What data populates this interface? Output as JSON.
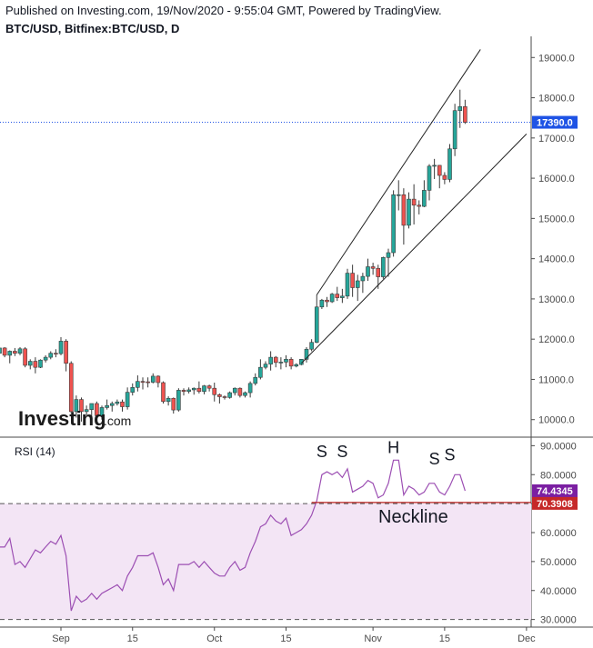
{
  "header": {
    "published": "Published on Investing.com, 19/Nov/2020 - 9:55:04 GMT, Powered by TradingView.",
    "symbol": "BTC/USD, Bitfinex:BTC/USD, D"
  },
  "logo": {
    "brand": "Investing",
    "suffix": ".com"
  },
  "colors": {
    "up": "#26a69a",
    "down": "#ef5350",
    "rsi_line": "#9c4fb3",
    "rsi_band": "#f3e5f5",
    "price_tag": "#1e53e5",
    "rsi_tag": "#7b1fa2",
    "level_tag": "#c62828",
    "neckline": "#b71c1c"
  },
  "chart_data": [
    {
      "type": "candlestick",
      "title": "BTC/USD, Bitfinex:BTC/USD, D",
      "ylim": [
        9700,
        19300
      ],
      "yticks": [
        "19000.0",
        "18000.0",
        "17000.0",
        "16000.0",
        "15000.0",
        "14000.0",
        "13000.0",
        "12000.0",
        "11000.0",
        "10000.0"
      ],
      "last_price_label": "17390.0",
      "last_price": 17390,
      "xlabels": [
        {
          "text": "Sep",
          "date": "2020-09-01"
        },
        {
          "text": "15",
          "date": "2020-09-15"
        },
        {
          "text": "Oct",
          "date": "2020-10-01"
        },
        {
          "text": "15",
          "date": "2020-10-15"
        },
        {
          "text": "Nov",
          "date": "2020-11-01"
        },
        {
          "text": "15",
          "date": "2020-11-15"
        },
        {
          "text": "Dec",
          "date": "2020-12-01"
        }
      ],
      "candles": [
        {
          "date": "2020-08-20",
          "o": 11650,
          "h": 11820,
          "l": 11500,
          "c": 11780
        },
        {
          "date": "2020-08-21",
          "o": 11780,
          "h": 11800,
          "l": 11550,
          "c": 11600
        },
        {
          "date": "2020-08-22",
          "o": 11600,
          "h": 11720,
          "l": 11400,
          "c": 11700
        },
        {
          "date": "2020-08-23",
          "o": 11700,
          "h": 11780,
          "l": 11580,
          "c": 11650
        },
        {
          "date": "2020-08-24",
          "o": 11650,
          "h": 11800,
          "l": 11600,
          "c": 11760
        },
        {
          "date": "2020-08-25",
          "o": 11760,
          "h": 11800,
          "l": 11300,
          "c": 11350
        },
        {
          "date": "2020-08-26",
          "o": 11350,
          "h": 11500,
          "l": 11250,
          "c": 11450
        },
        {
          "date": "2020-08-27",
          "o": 11450,
          "h": 11550,
          "l": 11150,
          "c": 11300
        },
        {
          "date": "2020-08-28",
          "o": 11300,
          "h": 11500,
          "l": 11280,
          "c": 11480
        },
        {
          "date": "2020-08-29",
          "o": 11480,
          "h": 11600,
          "l": 11420,
          "c": 11550
        },
        {
          "date": "2020-08-30",
          "o": 11550,
          "h": 11700,
          "l": 11500,
          "c": 11650
        },
        {
          "date": "2020-08-31",
          "o": 11650,
          "h": 11750,
          "l": 11550,
          "c": 11640
        },
        {
          "date": "2020-09-01",
          "o": 11640,
          "h": 12050,
          "l": 11600,
          "c": 11950
        },
        {
          "date": "2020-09-02",
          "o": 11950,
          "h": 12000,
          "l": 11200,
          "c": 11400
        },
        {
          "date": "2020-09-03",
          "o": 11400,
          "h": 11450,
          "l": 10150,
          "c": 10200
        },
        {
          "date": "2020-09-04",
          "o": 10200,
          "h": 10600,
          "l": 10050,
          "c": 10500
        },
        {
          "date": "2020-09-05",
          "o": 10500,
          "h": 10550,
          "l": 9950,
          "c": 10200
        },
        {
          "date": "2020-09-06",
          "o": 10200,
          "h": 10350,
          "l": 10100,
          "c": 10250
        },
        {
          "date": "2020-09-07",
          "o": 10250,
          "h": 10400,
          "l": 9900,
          "c": 10400
        },
        {
          "date": "2020-09-08",
          "o": 10400,
          "h": 10450,
          "l": 9950,
          "c": 10100
        },
        {
          "date": "2020-09-09",
          "o": 10100,
          "h": 10350,
          "l": 10000,
          "c": 10300
        },
        {
          "date": "2020-09-10",
          "o": 10300,
          "h": 10500,
          "l": 10250,
          "c": 10350
        },
        {
          "date": "2020-09-11",
          "o": 10350,
          "h": 10450,
          "l": 10200,
          "c": 10400
        },
        {
          "date": "2020-09-12",
          "o": 10400,
          "h": 10500,
          "l": 10350,
          "c": 10440
        },
        {
          "date": "2020-09-13",
          "o": 10440,
          "h": 10500,
          "l": 10200,
          "c": 10320
        },
        {
          "date": "2020-09-14",
          "o": 10320,
          "h": 10800,
          "l": 10250,
          "c": 10680
        },
        {
          "date": "2020-09-15",
          "o": 10680,
          "h": 10900,
          "l": 10600,
          "c": 10800
        },
        {
          "date": "2020-09-16",
          "o": 10800,
          "h": 11100,
          "l": 10700,
          "c": 10950
        },
        {
          "date": "2020-09-17",
          "o": 10950,
          "h": 11050,
          "l": 10750,
          "c": 10940
        },
        {
          "date": "2020-09-18",
          "o": 10940,
          "h": 11050,
          "l": 10800,
          "c": 10930
        },
        {
          "date": "2020-09-19",
          "o": 10930,
          "h": 11150,
          "l": 10900,
          "c": 11080
        },
        {
          "date": "2020-09-20",
          "o": 11080,
          "h": 11100,
          "l": 10800,
          "c": 10920
        },
        {
          "date": "2020-09-21",
          "o": 10920,
          "h": 10950,
          "l": 10400,
          "c": 10450
        },
        {
          "date": "2020-09-22",
          "o": 10450,
          "h": 10580,
          "l": 10350,
          "c": 10530
        },
        {
          "date": "2020-09-23",
          "o": 10530,
          "h": 10550,
          "l": 10150,
          "c": 10240
        },
        {
          "date": "2020-09-24",
          "o": 10240,
          "h": 10780,
          "l": 10200,
          "c": 10730
        },
        {
          "date": "2020-09-25",
          "o": 10730,
          "h": 10780,
          "l": 10600,
          "c": 10700
        },
        {
          "date": "2020-09-26",
          "o": 10700,
          "h": 10800,
          "l": 10650,
          "c": 10740
        },
        {
          "date": "2020-09-27",
          "o": 10740,
          "h": 10800,
          "l": 10620,
          "c": 10780
        },
        {
          "date": "2020-09-28",
          "o": 10780,
          "h": 10950,
          "l": 10650,
          "c": 10700
        },
        {
          "date": "2020-09-29",
          "o": 10700,
          "h": 10860,
          "l": 10630,
          "c": 10840
        },
        {
          "date": "2020-09-30",
          "o": 10840,
          "h": 10870,
          "l": 10700,
          "c": 10780
        },
        {
          "date": "2020-10-01",
          "o": 10780,
          "h": 10920,
          "l": 10450,
          "c": 10620
        },
        {
          "date": "2020-10-02",
          "o": 10620,
          "h": 10650,
          "l": 10400,
          "c": 10570
        },
        {
          "date": "2020-10-03",
          "o": 10570,
          "h": 10600,
          "l": 10500,
          "c": 10550
        },
        {
          "date": "2020-10-04",
          "o": 10550,
          "h": 10700,
          "l": 10520,
          "c": 10670
        },
        {
          "date": "2020-10-05",
          "o": 10670,
          "h": 10800,
          "l": 10600,
          "c": 10780
        },
        {
          "date": "2020-10-06",
          "o": 10780,
          "h": 10800,
          "l": 10550,
          "c": 10600
        },
        {
          "date": "2020-10-07",
          "o": 10600,
          "h": 10700,
          "l": 10550,
          "c": 10670
        },
        {
          "date": "2020-10-08",
          "o": 10670,
          "h": 10950,
          "l": 10550,
          "c": 10900
        },
        {
          "date": "2020-10-09",
          "o": 10900,
          "h": 11150,
          "l": 10850,
          "c": 11050
        },
        {
          "date": "2020-10-10",
          "o": 11050,
          "h": 11500,
          "l": 11000,
          "c": 11300
        },
        {
          "date": "2020-10-11",
          "o": 11300,
          "h": 11450,
          "l": 11250,
          "c": 11380
        },
        {
          "date": "2020-10-12",
          "o": 11380,
          "h": 11700,
          "l": 11220,
          "c": 11550
        },
        {
          "date": "2020-10-13",
          "o": 11550,
          "h": 11580,
          "l": 11300,
          "c": 11420
        },
        {
          "date": "2020-10-14",
          "o": 11420,
          "h": 11550,
          "l": 11250,
          "c": 11430
        },
        {
          "date": "2020-10-15",
          "o": 11430,
          "h": 11600,
          "l": 11300,
          "c": 11500
        },
        {
          "date": "2020-10-16",
          "o": 11500,
          "h": 11550,
          "l": 11250,
          "c": 11330
        },
        {
          "date": "2020-10-17",
          "o": 11330,
          "h": 11400,
          "l": 11300,
          "c": 11370
        },
        {
          "date": "2020-10-18",
          "o": 11370,
          "h": 11500,
          "l": 11350,
          "c": 11500
        },
        {
          "date": "2020-10-19",
          "o": 11500,
          "h": 11800,
          "l": 11420,
          "c": 11750
        },
        {
          "date": "2020-10-20",
          "o": 11750,
          "h": 12000,
          "l": 11700,
          "c": 11920
        },
        {
          "date": "2020-10-21",
          "o": 11920,
          "h": 13100,
          "l": 11900,
          "c": 12800
        },
        {
          "date": "2020-10-22",
          "o": 12800,
          "h": 13000,
          "l": 12750,
          "c": 12970
        },
        {
          "date": "2020-10-23",
          "o": 12970,
          "h": 13050,
          "l": 12800,
          "c": 12930
        },
        {
          "date": "2020-10-24",
          "o": 12930,
          "h": 13150,
          "l": 12900,
          "c": 13120
        },
        {
          "date": "2020-10-25",
          "o": 13120,
          "h": 13300,
          "l": 12950,
          "c": 13030
        },
        {
          "date": "2020-10-26",
          "o": 13030,
          "h": 13250,
          "l": 12900,
          "c": 13070
        },
        {
          "date": "2020-10-27",
          "o": 13070,
          "h": 13750,
          "l": 13000,
          "c": 13640
        },
        {
          "date": "2020-10-28",
          "o": 13640,
          "h": 13850,
          "l": 13050,
          "c": 13280
        },
        {
          "date": "2020-10-29",
          "o": 13280,
          "h": 13600,
          "l": 12950,
          "c": 13450
        },
        {
          "date": "2020-10-30",
          "o": 13450,
          "h": 13650,
          "l": 13150,
          "c": 13560
        },
        {
          "date": "2020-10-31",
          "o": 13560,
          "h": 14000,
          "l": 13450,
          "c": 13800
        },
        {
          "date": "2020-11-01",
          "o": 13800,
          "h": 13900,
          "l": 13600,
          "c": 13760
        },
        {
          "date": "2020-11-02",
          "o": 13760,
          "h": 13850,
          "l": 13250,
          "c": 13550
        },
        {
          "date": "2020-11-03",
          "o": 13550,
          "h": 14050,
          "l": 13500,
          "c": 14030
        },
        {
          "date": "2020-11-04",
          "o": 14030,
          "h": 14250,
          "l": 13550,
          "c": 14150
        },
        {
          "date": "2020-11-05",
          "o": 14150,
          "h": 15700,
          "l": 14050,
          "c": 15590
        },
        {
          "date": "2020-11-06",
          "o": 15590,
          "h": 15950,
          "l": 15200,
          "c": 15590
        },
        {
          "date": "2020-11-07",
          "o": 15590,
          "h": 15750,
          "l": 14350,
          "c": 14830
        },
        {
          "date": "2020-11-08",
          "o": 14830,
          "h": 15650,
          "l": 14750,
          "c": 15480
        },
        {
          "date": "2020-11-09",
          "o": 15480,
          "h": 15850,
          "l": 14850,
          "c": 15330
        },
        {
          "date": "2020-11-10",
          "o": 15330,
          "h": 15450,
          "l": 15100,
          "c": 15300
        },
        {
          "date": "2020-11-11",
          "o": 15300,
          "h": 15950,
          "l": 15280,
          "c": 15700
        },
        {
          "date": "2020-11-12",
          "o": 15700,
          "h": 16350,
          "l": 15450,
          "c": 16300
        },
        {
          "date": "2020-11-13",
          "o": 16300,
          "h": 16480,
          "l": 15980,
          "c": 16320
        },
        {
          "date": "2020-11-14",
          "o": 16320,
          "h": 16330,
          "l": 15750,
          "c": 16070
        },
        {
          "date": "2020-11-15",
          "o": 16070,
          "h": 16150,
          "l": 15850,
          "c": 15970
        },
        {
          "date": "2020-11-16",
          "o": 15970,
          "h": 16850,
          "l": 15900,
          "c": 16730
        },
        {
          "date": "2020-11-17",
          "o": 16730,
          "h": 17850,
          "l": 16550,
          "c": 17680
        },
        {
          "date": "2020-11-18",
          "o": 17680,
          "h": 18200,
          "l": 17250,
          "c": 17780
        },
        {
          "date": "2020-11-19",
          "o": 17780,
          "h": 17950,
          "l": 17350,
          "c": 17390
        }
      ],
      "trendlines": [
        {
          "name": "upper-channel",
          "from": {
            "date": "2020-10-21",
            "value": 13100
          },
          "to": {
            "date": "2020-11-22",
            "value": 19200
          }
        },
        {
          "name": "lower-channel",
          "from": {
            "date": "2020-10-18",
            "value": 11400
          },
          "to": {
            "date": "2020-12-01",
            "value": 17100
          }
        }
      ]
    },
    {
      "type": "line",
      "title": "RSI (14)",
      "ylim": [
        28,
        92
      ],
      "yticks": [
        "90.0000",
        "80.0000",
        "70.0000",
        "60.0000",
        "50.0000",
        "40.0000",
        "30.0000"
      ],
      "levels": [
        70,
        30
      ],
      "last_value_label": "74.4345",
      "neckline_label": "70.3908",
      "neckline_value": 70.3908,
      "neckline_start": "2020-10-20",
      "neckline_text": "Neckline",
      "annotations": [
        {
          "text": "S",
          "date": "2020-10-22",
          "value": 86
        },
        {
          "text": "S",
          "date": "2020-10-26",
          "value": 86
        },
        {
          "text": "H",
          "date": "2020-11-05",
          "value": 87.5
        },
        {
          "text": "S",
          "date": "2020-11-13",
          "value": 83.5
        },
        {
          "text": "S",
          "date": "2020-11-16",
          "value": 85
        }
      ],
      "values": [
        55,
        55,
        58,
        49,
        50,
        48,
        51,
        54,
        53,
        55,
        57,
        56,
        59,
        52,
        33,
        38,
        36,
        37,
        39,
        37,
        39,
        40,
        41,
        42,
        40,
        45,
        48,
        52,
        52,
        52,
        53,
        48,
        42,
        44,
        40,
        49,
        49,
        49,
        50,
        48,
        50,
        48,
        46,
        45,
        45,
        48,
        50,
        47,
        48,
        53,
        57,
        62,
        63,
        66,
        64,
        63,
        65,
        59,
        60,
        61,
        63,
        66,
        71,
        80,
        81,
        80,
        81,
        79,
        82,
        74,
        75,
        76,
        78,
        77,
        72,
        73,
        77,
        85,
        85,
        73,
        76,
        75,
        73,
        74,
        77,
        77,
        74,
        73,
        76,
        80,
        80,
        74.4
      ]
    }
  ]
}
